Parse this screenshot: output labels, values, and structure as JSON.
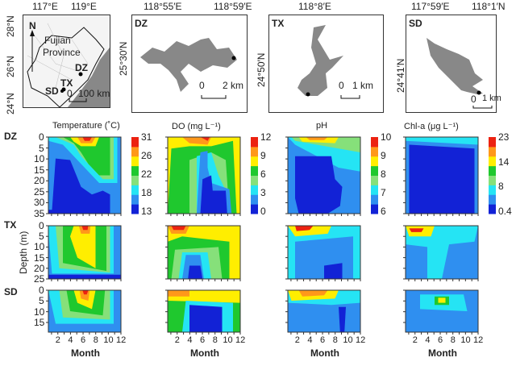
{
  "maps": {
    "overview": {
      "lon_ticks": [
        "117°E",
        "119°E"
      ],
      "lat_ticks": [
        "28°N",
        "26°N",
        "24°N"
      ],
      "north": "N",
      "region": [
        "Fujian",
        "Province"
      ],
      "sites": [
        "DZ",
        "TX",
        "SD"
      ],
      "scale": [
        "0",
        "100 km"
      ]
    },
    "dz": {
      "label": "DZ",
      "lon_ticks": [
        "118°55′E",
        "118°59′E"
      ],
      "lat_tick": "25°30′N",
      "scale": [
        "0",
        "2 km"
      ]
    },
    "tx": {
      "label": "TX",
      "lon_tick": "118°8′E",
      "lat_tick": "24°50′N",
      "scale": [
        "0",
        "1 km"
      ]
    },
    "sd": {
      "label": "SD",
      "lon_ticks": [
        "117°59′E",
        "118°1′N"
      ],
      "lat_tick": "24°41′N",
      "scale": [
        "0",
        "1 km"
      ]
    }
  },
  "rows": [
    "DZ",
    "TX",
    "SD"
  ],
  "ylabel": "Depth (m)",
  "xlabel": "Month",
  "month_ticks": [
    "2",
    "4",
    "6",
    "8",
    "10",
    "12"
  ],
  "depth_ticks": {
    "DZ": [
      "0",
      "5",
      "10",
      "15",
      "20",
      "25",
      "30",
      "35"
    ],
    "TX": [
      "0",
      "5",
      "10",
      "15",
      "20",
      "25"
    ],
    "SD": [
      "0",
      "5",
      "10",
      "15"
    ]
  },
  "colors": [
    "#1222d6",
    "#2f8ff0",
    "#25e4f4",
    "#86e07a",
    "#1fc82e",
    "#ffee00",
    "#ff981a",
    "#ec2211"
  ],
  "chart_data": {
    "type": "heatmap",
    "columns": [
      {
        "title": "Temperature (˚C)",
        "colorbar": [
          "31",
          "26",
          "22",
          "18",
          "13"
        ],
        "range": [
          13,
          31
        ]
      },
      {
        "title": "DO (mg L⁻¹)",
        "colorbar": [
          "12",
          "9",
          "6",
          "3",
          "0"
        ],
        "range": [
          0,
          12
        ]
      },
      {
        "title": "pH",
        "colorbar": [
          "10",
          "9",
          "8",
          "7",
          "6"
        ],
        "range": [
          6,
          10
        ]
      },
      {
        "title": "Chl-a (μg L⁻¹)",
        "colorbar": [
          "23",
          "14",
          "8",
          "0.4"
        ],
        "range": [
          0.4,
          23
        ]
      }
    ],
    "x_range": [
      1,
      12.5
    ],
    "depth_range": {
      "DZ": [
        0,
        35
      ],
      "TX": [
        0,
        25
      ],
      "SD": [
        0,
        18
      ]
    }
  }
}
